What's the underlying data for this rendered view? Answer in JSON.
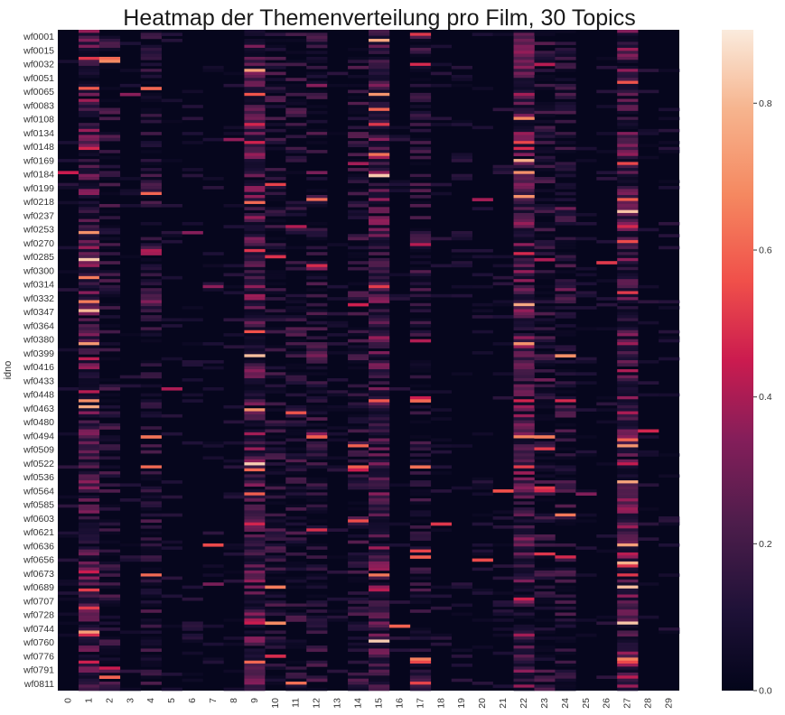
{
  "chart_data": {
    "type": "heatmap",
    "title": "Heatmap der Themenverteilung pro Film, 30 Topics",
    "ylabel": "idno",
    "xlabel": "",
    "x_ticks": [
      "0",
      "1",
      "2",
      "3",
      "4",
      "5",
      "6",
      "7",
      "8",
      "9",
      "10",
      "11",
      "12",
      "13",
      "14",
      "15",
      "16",
      "17",
      "18",
      "19",
      "20",
      "21",
      "22",
      "23",
      "24",
      "25",
      "26",
      "27",
      "28",
      "29"
    ],
    "y_ticks": [
      "wf0001",
      "wf0015",
      "wf0032",
      "wf0051",
      "wf0065",
      "wf0083",
      "wf0108",
      "wf0134",
      "wf0148",
      "wf0169",
      "wf0184",
      "wf0199",
      "wf0218",
      "wf0237",
      "wf0253",
      "wf0270",
      "wf0285",
      "wf0300",
      "wf0314",
      "wf0332",
      "wf0347",
      "wf0364",
      "wf0380",
      "wf0399",
      "wf0416",
      "wf0433",
      "wf0448",
      "wf0463",
      "wf0480",
      "wf0494",
      "wf0509",
      "wf0522",
      "wf0536",
      "wf0564",
      "wf0585",
      "wf0603",
      "wf0621",
      "wf0636",
      "wf0656",
      "wf0673",
      "wf0689",
      "wf0707",
      "wf0728",
      "wf0744",
      "wf0760",
      "wf0776",
      "wf0791",
      "wf0811"
    ],
    "colorbar": {
      "vmin": 0.0,
      "vmax": 0.9,
      "ticks": [
        "0.0",
        "0.2",
        "0.4",
        "0.6",
        "0.8"
      ],
      "colormap": "rocket"
    },
    "column_mean_weight": [
      0.015,
      0.32,
      0.05,
      0.04,
      0.05,
      0.02,
      0.015,
      0.03,
      0.025,
      0.33,
      0.05,
      0.07,
      0.06,
      0.02,
      0.06,
      0.25,
      0.03,
      0.14,
      0.02,
      0.015,
      0.015,
      0.04,
      0.36,
      0.05,
      0.06,
      0.02,
      0.03,
      0.25,
      0.03,
      0.02
    ]
  }
}
